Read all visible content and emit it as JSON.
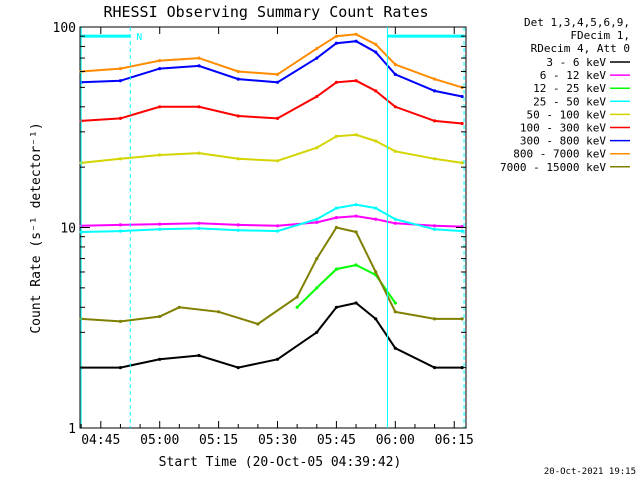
{
  "chart_data": {
    "type": "line",
    "title": "RHESSI Observing Summary Count Rates",
    "xlabel": "Start Time (20-Oct-05 04:39:42)",
    "ylabel": "Count Rate (s⁻¹ detector⁻¹)",
    "y_scale": "log",
    "ylim": [
      1,
      100
    ],
    "xlim": [
      "04:39:42",
      "06:18:00"
    ],
    "x_tick_labels": [
      "04:45",
      "05:00",
      "05:15",
      "05:30",
      "05:45",
      "06:00",
      "06:15"
    ],
    "y_tick_labels": [
      "1",
      "10",
      "100"
    ],
    "legend_header": [
      "Det 1,3,4,5,6,9,",
      "FDecim 1,",
      "RDecim 4, Att 0"
    ],
    "legend_position": "right",
    "attenuator_marker": "N",
    "series": [
      {
        "name": "3 - 6 keV",
        "color": "#000000",
        "x": [
          "04:40",
          "04:50",
          "05:00",
          "05:10",
          "05:20",
          "05:30",
          "05:40",
          "05:45",
          "05:50",
          "05:55",
          "06:00",
          "06:10",
          "06:17"
        ],
        "values": [
          2.0,
          2.0,
          2.2,
          2.3,
          2.0,
          2.2,
          3.0,
          4.0,
          4.2,
          3.5,
          2.5,
          2.0,
          2.0
        ]
      },
      {
        "name": "6 - 12 keV",
        "color": "#ff00ff",
        "x": [
          "04:40",
          "04:50",
          "05:00",
          "05:10",
          "05:20",
          "05:30",
          "05:40",
          "05:45",
          "05:50",
          "05:55",
          "06:00",
          "06:10",
          "06:17"
        ],
        "values": [
          10.2,
          10.3,
          10.4,
          10.5,
          10.3,
          10.2,
          10.6,
          11.2,
          11.4,
          11.0,
          10.5,
          10.2,
          10.1
        ]
      },
      {
        "name": "12 - 25 keV",
        "color": "#00ff00",
        "x": [
          "05:35",
          "05:40",
          "05:45",
          "05:50",
          "05:55",
          "06:00"
        ],
        "values": [
          4.0,
          5.0,
          6.2,
          6.5,
          5.8,
          4.2
        ]
      },
      {
        "name": "25 - 50 keV",
        "color": "#00ffff",
        "x": [
          "04:40",
          "04:50",
          "05:00",
          "05:10",
          "05:20",
          "05:30",
          "05:40",
          "05:45",
          "05:50",
          "05:55",
          "06:00",
          "06:10",
          "06:17"
        ],
        "values": [
          9.5,
          9.6,
          9.8,
          9.9,
          9.7,
          9.6,
          11.0,
          12.5,
          13.0,
          12.5,
          11.0,
          9.8,
          9.6
        ]
      },
      {
        "name": "50 - 100 keV",
        "color": "#d4d400",
        "x": [
          "04:40",
          "04:50",
          "05:00",
          "05:10",
          "05:20",
          "05:30",
          "05:40",
          "05:45",
          "05:50",
          "05:55",
          "06:00",
          "06:10",
          "06:17"
        ],
        "values": [
          21,
          22,
          23,
          23.5,
          22,
          21.5,
          25,
          28.5,
          29,
          27,
          24,
          22,
          21
        ]
      },
      {
        "name": "100 - 300 keV",
        "color": "#ff0000",
        "x": [
          "04:40",
          "04:50",
          "05:00",
          "05:10",
          "05:20",
          "05:30",
          "05:40",
          "05:45",
          "05:50",
          "05:55",
          "06:00",
          "06:10",
          "06:17"
        ],
        "values": [
          34,
          35,
          40,
          40,
          36,
          35,
          45,
          53,
          54,
          48,
          40,
          34,
          33
        ]
      },
      {
        "name": "300 - 800 keV",
        "color": "#0000ff",
        "x": [
          "04:40",
          "04:50",
          "05:00",
          "05:10",
          "05:20",
          "05:30",
          "05:40",
          "05:45",
          "05:50",
          "05:55",
          "06:00",
          "06:10",
          "06:17"
        ],
        "values": [
          53,
          54,
          62,
          64,
          55,
          53,
          70,
          83,
          85,
          75,
          58,
          48,
          45
        ]
      },
      {
        "name": "800 - 7000 keV",
        "color": "#ff8c00",
        "x": [
          "04:40",
          "04:50",
          "05:00",
          "05:10",
          "05:20",
          "05:30",
          "05:40",
          "05:45",
          "05:50",
          "05:55",
          "06:00",
          "06:10",
          "06:17"
        ],
        "values": [
          60,
          62,
          68,
          70,
          60,
          58,
          78,
          90,
          92,
          82,
          65,
          55,
          50
        ]
      },
      {
        "name": "7000 - 15000 keV",
        "color": "#808000",
        "x": [
          "04:40",
          "04:50",
          "05:00",
          "05:05",
          "05:15",
          "05:25",
          "05:35",
          "05:40",
          "05:45",
          "05:50",
          "05:55",
          "06:00",
          "06:10",
          "06:17"
        ],
        "values": [
          3.5,
          3.4,
          3.6,
          4.0,
          3.8,
          3.3,
          4.5,
          7.0,
          10.0,
          9.5,
          6.0,
          3.8,
          3.5,
          3.5
        ]
      }
    ],
    "vertical_markers": [
      {
        "time": "04:40:00",
        "color": "#00ffff",
        "style": "solid"
      },
      {
        "time": "04:52:30",
        "color": "#00ffff",
        "style": "dashed"
      },
      {
        "time": "05:58:00",
        "color": "#00ffff",
        "style": "solid"
      },
      {
        "time": "06:17:30",
        "color": "#00ffff",
        "style": "dashed"
      }
    ],
    "top_bars": [
      {
        "from": "04:40:00",
        "to": "04:52:30",
        "value": 90,
        "color": "#00ffff"
      },
      {
        "from": "05:58:00",
        "to": "06:17:30",
        "value": 90,
        "color": "#00ffff"
      }
    ]
  },
  "footer": {
    "timestamp": "20-Oct-2021 19:15"
  }
}
